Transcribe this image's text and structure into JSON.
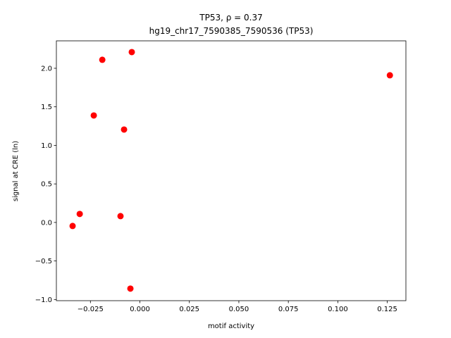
{
  "chart_data": {
    "type": "scatter",
    "title": "TP53, ρ = 0.37",
    "subtitle": "hg19_chr17_7590385_7590536 (TP53)",
    "x_label": "motif activity",
    "y_label": "signal at CRE (ln)",
    "color": "#ff0000",
    "x": [
      0.1263,
      -0.0041,
      -0.019,
      -0.0233,
      -0.008,
      -0.0304,
      -0.034,
      -0.0098,
      -0.0048
    ],
    "values": [
      1.909,
      2.21,
      2.11,
      1.388,
      1.205,
      0.11,
      -0.046,
      0.082,
      -0.858
    ],
    "xlim": [
      -0.0422,
      0.1344
    ],
    "ylim": [
      -1.015,
      2.356
    ],
    "xticks": [
      {
        "value": -0.025,
        "label": "−0.025"
      },
      {
        "value": 0,
        "label": "0.000"
      },
      {
        "value": 0.025,
        "label": "0.025"
      },
      {
        "value": 0.05,
        "label": "0.050"
      },
      {
        "value": 0.075,
        "label": "0.075"
      },
      {
        "value": 0.1,
        "label": "0.100"
      },
      {
        "value": 0.125,
        "label": "0.125"
      }
    ],
    "yticks": [
      {
        "value": -1,
        "label": "−1.0"
      },
      {
        "value": -0.5,
        "label": "−0.5"
      },
      {
        "value": 0,
        "label": "0.0"
      },
      {
        "value": 0.5,
        "label": "0.5"
      },
      {
        "value": 1,
        "label": "1.0"
      },
      {
        "value": 1.5,
        "label": "1.5"
      },
      {
        "value": 2,
        "label": "2.0"
      }
    ]
  }
}
